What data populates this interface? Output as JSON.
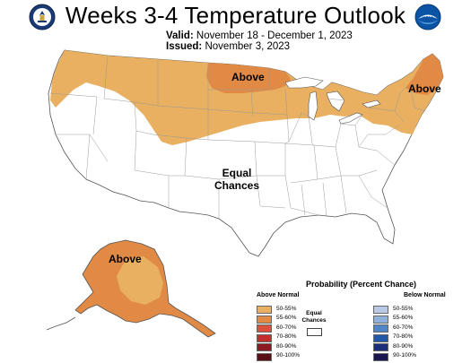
{
  "header": {
    "title": "Weeks 3-4 Temperature Outlook",
    "valid_label": "Valid:",
    "valid_value": "November 18 - December 1, 2023",
    "issued_label": "Issued:",
    "issued_value": "November 3, 2023"
  },
  "logos": {
    "left": "department-of-commerce-seal",
    "right": "noaa-logo"
  },
  "map_labels": {
    "north_central": "Above",
    "northeast": "Above",
    "center_line1": "Equal",
    "center_line2": "Chances",
    "alaska": "Above"
  },
  "legend": {
    "title": "Probability (Percent Chance)",
    "above_header": "Above Normal",
    "below_header": "Below Normal",
    "equal_line1": "Equal",
    "equal_line2": "Chances",
    "above": [
      {
        "label": "50-55%",
        "color": "#e8b060"
      },
      {
        "label": "55-60%",
        "color": "#e08a45"
      },
      {
        "label": "60-70%",
        "color": "#d9513a"
      },
      {
        "label": "70-80%",
        "color": "#c0302c"
      },
      {
        "label": "80-90%",
        "color": "#8b1a22"
      },
      {
        "label": "90-100%",
        "color": "#5a0f16"
      }
    ],
    "below": [
      {
        "label": "50-55%",
        "color": "#b9c9e6"
      },
      {
        "label": "55-60%",
        "color": "#8fb1db"
      },
      {
        "label": "60-70%",
        "color": "#4f86c6"
      },
      {
        "label": "70-80%",
        "color": "#2159a8"
      },
      {
        "label": "80-90%",
        "color": "#1b2f7a"
      },
      {
        "label": "90-100%",
        "color": "#1a1750"
      }
    ]
  },
  "colors": {
    "above_50_55": "#e8b060",
    "above_55_60": "#e08a45",
    "state_border": "#9a9a9a",
    "map_outline": "#555555"
  }
}
